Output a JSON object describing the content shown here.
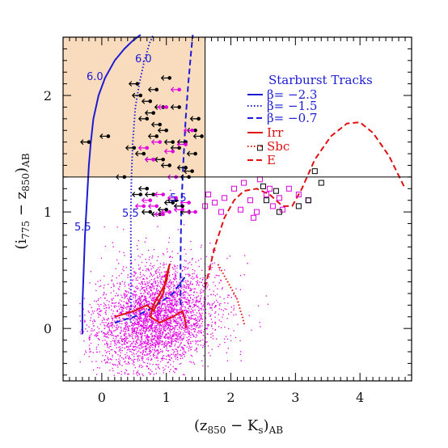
{
  "chart_data": {
    "type": "scatter",
    "xlabel_main": "(z",
    "xlabel_sub1": "850",
    "xlabel_mid": " − K",
    "xlabel_sub2": "s",
    "xlabel_end": ")",
    "xlabel_sub3": "AB",
    "ylabel_main": "(i",
    "ylabel_sub1": "775",
    "ylabel_mid": " − z",
    "ylabel_sub2": "850",
    "ylabel_end": ")",
    "ylabel_sub3": "AB",
    "xlim": [
      -0.6,
      4.8
    ],
    "ylim": [
      -0.45,
      2.5
    ],
    "xticks": [
      0,
      1,
      2,
      3,
      4
    ],
    "yticks": [
      0,
      1,
      2
    ],
    "selection_region": {
      "x_max": 1.6,
      "y_min": 1.3,
      "color": "#f9dcbd"
    },
    "reference_lines": {
      "horizontal_y": 1.3,
      "vertical_x": 1.6
    },
    "legend": {
      "title": "Starburst Tracks",
      "title_color": "#1b1bd6",
      "starburst_entries": [
        "β=  −2.3",
        "β=  −1.5",
        "β=  −0.7"
      ],
      "galaxy_entries": [
        "Irr",
        "Sbc",
        "E"
      ],
      "blue": "#1b1bd6",
      "red": "#e01010"
    },
    "annotations": [
      "6.0",
      "6.0",
      "5.5",
      "5.5",
      "5.5"
    ],
    "series": [
      {
        "kind": "starburst-track",
        "style": "solid",
        "color": "#1b1bd6",
        "x": [
          -0.3,
          -0.3,
          -0.28,
          -0.26,
          -0.24,
          -0.22,
          -0.2,
          -0.17,
          -0.13,
          -0.05,
          0.05,
          0.2,
          0.35,
          0.48,
          0.6
        ],
        "y": [
          -0.05,
          0.2,
          0.5,
          0.8,
          1.0,
          1.2,
          1.4,
          1.6,
          1.8,
          2.0,
          2.15,
          2.3,
          2.4,
          2.47,
          2.52
        ]
      },
      {
        "kind": "starburst-track",
        "style": "dotted",
        "color": "#1b1bd6",
        "x": [
          0.45,
          0.45,
          0.45,
          0.46,
          0.48,
          0.52,
          0.58,
          0.66,
          0.74,
          0.8
        ],
        "y": [
          0.05,
          0.5,
          1.0,
          1.3,
          1.6,
          1.9,
          2.1,
          2.3,
          2.45,
          2.52
        ]
      },
      {
        "kind": "starburst-track",
        "style": "dashed",
        "color": "#1b1bd6",
        "x": [
          1.22,
          1.22,
          1.23,
          1.26,
          1.3,
          1.34,
          1.38,
          1.41
        ],
        "y": [
          0.2,
          0.6,
          1.0,
          1.4,
          1.8,
          2.1,
          2.35,
          2.52
        ]
      },
      {
        "kind": "low-z-track",
        "style": "dashed",
        "color": "#1b1bd6",
        "x": [
          0.2,
          0.5,
          0.8,
          1.1,
          1.3
        ],
        "y": [
          0.05,
          0.1,
          0.18,
          0.3,
          0.45
        ]
      },
      {
        "kind": "galaxy-track",
        "name": "Irr",
        "style": "solid",
        "color": "#e01010",
        "x": [
          0.2,
          0.5,
          0.7,
          0.8,
          0.95,
          1.0,
          1.05,
          1.0,
          0.9,
          0.8,
          0.75,
          0.9,
          1.1,
          1.25,
          1.3,
          1.3
        ],
        "y": [
          0.1,
          0.15,
          0.2,
          0.15,
          0.3,
          0.45,
          0.55,
          0.4,
          0.3,
          0.2,
          0.1,
          0.05,
          0.1,
          0.15,
          0.05,
          0.0
        ]
      },
      {
        "kind": "galaxy-track",
        "name": "Sbc",
        "style": "dotted",
        "color": "#e01010",
        "x": [
          1.8,
          1.9,
          2.0,
          2.1,
          2.15,
          2.18,
          2.2,
          2.22
        ],
        "y": [
          0.55,
          0.45,
          0.35,
          0.25,
          0.15,
          0.1,
          0.05,
          0.02
        ]
      },
      {
        "kind": "galaxy-track",
        "name": "E",
        "style": "dashed",
        "color": "#e01010",
        "x": [
          1.6,
          1.75,
          1.9,
          2.05,
          2.2,
          2.4,
          2.6,
          2.8,
          2.95,
          3.1,
          3.3,
          3.55,
          3.8,
          4.0,
          4.2,
          4.45,
          4.7
        ],
        "y": [
          0.35,
          0.7,
          0.95,
          1.1,
          1.18,
          1.2,
          1.15,
          1.05,
          1.05,
          1.2,
          1.45,
          1.65,
          1.76,
          1.77,
          1.68,
          1.48,
          1.2
        ]
      },
      {
        "kind": "scatter-cloud",
        "color": "#e000e0",
        "center": [
          0.85,
          0.1
        ],
        "spread": [
          0.45,
          0.22
        ],
        "count": 3500
      },
      {
        "kind": "dropouts-black",
        "marker": "left-arrow",
        "color": "#000000",
        "x": [
          0.55,
          0.6,
          0.75,
          0.8,
          0.7,
          0.9,
          1.0,
          0.85,
          1.1,
          1.2,
          0.65,
          0.95,
          1.05,
          1.3,
          1.4,
          1.45,
          0.7,
          0.8,
          1.15,
          1.25,
          1.35,
          0.9,
          1.0,
          1.1,
          0.6,
          0.75,
          1.3,
          1.45,
          1.5,
          1.2,
          0.85,
          0.95,
          1.05,
          0.8,
          1.55,
          0.5,
          -0.2,
          0.1,
          0.35,
          1.35
        ],
        "y": [
          2.1,
          2.0,
          1.95,
          1.85,
          1.8,
          1.75,
          1.7,
          1.65,
          1.6,
          1.55,
          1.5,
          1.45,
          1.4,
          1.38,
          1.35,
          1.5,
          1.2,
          1.15,
          1.1,
          1.05,
          1.0,
          0.98,
          1.02,
          1.08,
          1.15,
          1.0,
          1.6,
          1.7,
          1.8,
          1.9,
          2.05,
          1.9,
          2.15,
          1.45,
          1.65,
          1.55,
          1.6,
          1.65,
          1.3,
          1.3
        ]
      },
      {
        "kind": "dropouts-magenta",
        "marker": "arrow",
        "color": "#e000e0",
        "x": [
          0.75,
          0.85,
          0.95,
          1.05,
          1.15,
          1.25,
          1.35,
          1.45,
          0.7,
          0.9,
          1.1,
          1.3,
          0.8,
          1.0,
          1.2,
          1.4,
          0.65,
          0.95,
          1.15
        ],
        "y": [
          1.1,
          1.05,
          1.15,
          1.0,
          1.12,
          1.02,
          1.08,
          1.0,
          1.55,
          1.6,
          1.52,
          1.58,
          1.45,
          1.9,
          2.05,
          1.7,
          1.05,
          0.98,
          1.3
        ]
      },
      {
        "kind": "open-squares-magenta",
        "color": "#e000e0",
        "x": [
          1.6,
          1.75,
          1.9,
          2.05,
          2.15,
          2.3,
          2.4,
          2.55,
          2.65,
          2.75,
          2.9,
          3.05,
          2.2,
          2.45,
          2.6,
          1.65,
          1.85,
          2.35,
          2.8,
          3.2
        ],
        "y": [
          1.05,
          1.08,
          1.12,
          1.2,
          1.02,
          1.1,
          1.0,
          1.15,
          1.05,
          1.12,
          1.2,
          1.15,
          1.25,
          1.28,
          1.2,
          1.15,
          1.0,
          0.95,
          1.02,
          1.1
        ]
      },
      {
        "kind": "open-squares-black",
        "color": "#000000",
        "x": [
          2.45,
          2.55,
          2.75,
          3.05,
          3.3,
          3.4,
          2.5,
          2.7,
          3.2
        ],
        "y": [
          1.55,
          1.1,
          1.0,
          1.05,
          1.35,
          1.25,
          1.22,
          1.18,
          1.1
        ]
      }
    ]
  }
}
